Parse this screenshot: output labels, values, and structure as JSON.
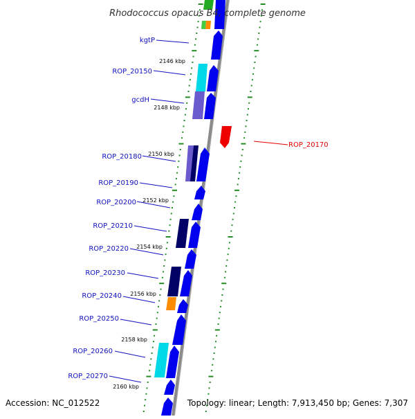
{
  "title": "Rhodococcus opacus B4, complete genome",
  "accession": "Accession: NC_012522",
  "topology": "Topology: linear; Length: 7,913,450 bp; Genes: 7,307",
  "colors": {
    "label_blue": "#1010c0",
    "label_red": "#e00000",
    "backbone_gray": "#8a8a8a",
    "gene_blue": "#0000ee",
    "gene_navy": "#000066",
    "gene_purple": "#6a5acd",
    "gene_cyan": "#00d8e8",
    "gene_orange": "#ff8c00",
    "gene_green": "#22aa22",
    "gene_red": "#ee0000",
    "dot_green": "#228b22"
  },
  "gene_labels": [
    {
      "name": "kgtP",
      "color": "blue"
    },
    {
      "name": "ROP_20150",
      "color": "blue"
    },
    {
      "name": "gcdH",
      "color": "blue"
    },
    {
      "name": "ROP_20170",
      "color": "red"
    },
    {
      "name": "ROP_20180",
      "color": "blue"
    },
    {
      "name": "ROP_20190",
      "color": "blue"
    },
    {
      "name": "ROP_20200",
      "color": "blue"
    },
    {
      "name": "ROP_20210",
      "color": "blue"
    },
    {
      "name": "ROP_20220",
      "color": "blue"
    },
    {
      "name": "ROP_20230",
      "color": "blue"
    },
    {
      "name": "ROP_20240",
      "color": "blue"
    },
    {
      "name": "ROP_20250",
      "color": "blue"
    },
    {
      "name": "ROP_20260",
      "color": "blue"
    },
    {
      "name": "ROP_20270",
      "color": "blue"
    }
  ],
  "ticks": [
    "2146 kbp",
    "2148 kbp",
    "2150 kbp",
    "2152 kbp",
    "2154 kbp",
    "2156 kbp",
    "2158 kbp",
    "2160 kbp"
  ]
}
